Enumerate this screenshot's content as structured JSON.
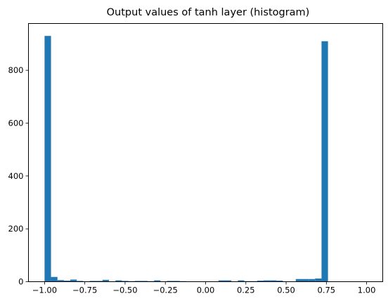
{
  "chart_data": {
    "type": "bar",
    "title": "Output values of tanh layer (histogram)",
    "xlabel": "",
    "ylabel": "",
    "xlim": [
      -1.1,
      1.1
    ],
    "ylim": [
      0,
      977
    ],
    "x_ticks": [
      -1.0,
      -0.75,
      -0.5,
      -0.25,
      0.0,
      0.25,
      0.5,
      0.75,
      1.0
    ],
    "x_tick_labels": [
      "−1.00",
      "−0.75",
      "−0.50",
      "−0.25",
      "0.00",
      "0.25",
      "0.50",
      "0.75",
      "1.00"
    ],
    "y_ticks": [
      0,
      200,
      400,
      600,
      800
    ],
    "y_tick_labels": [
      "0",
      "200",
      "400",
      "600",
      "800"
    ],
    "bin_start": -1.0,
    "bin_width": 0.04,
    "values": [
      930,
      18,
      6,
      4,
      8,
      3,
      1,
      3,
      3,
      7,
      1,
      5,
      3,
      2,
      3,
      3,
      2,
      5,
      1,
      3,
      3,
      2,
      0,
      0,
      0,
      0,
      0,
      5,
      5,
      1,
      5,
      2,
      2,
      4,
      5,
      5,
      4,
      1,
      0,
      10,
      10,
      10,
      12,
      910
    ],
    "bar_color": "#1f77b4",
    "grid": false,
    "legend": "none"
  }
}
